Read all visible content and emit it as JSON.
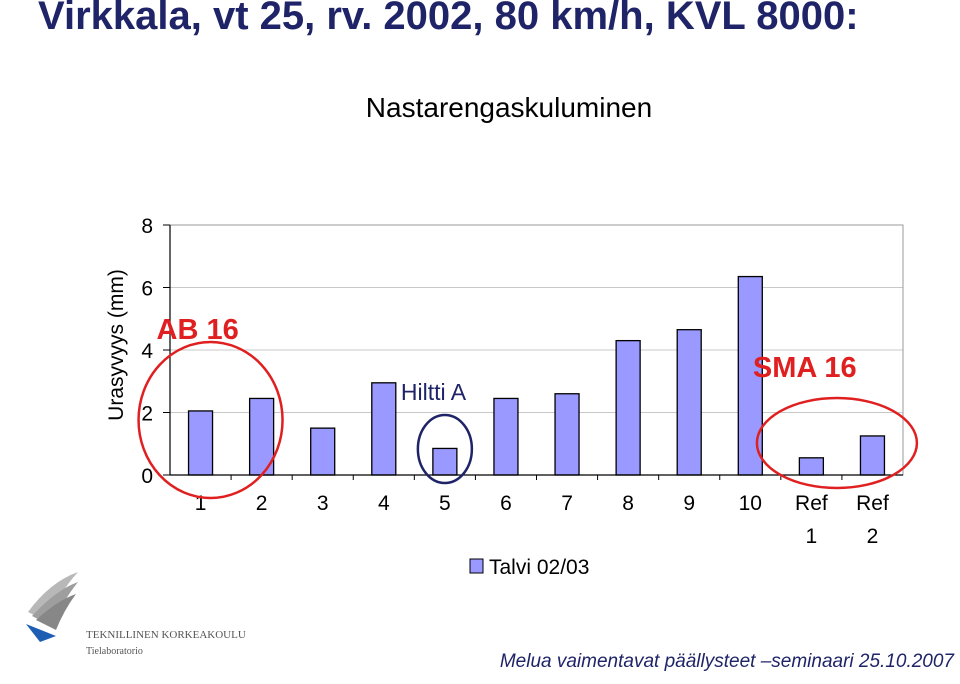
{
  "slide": {
    "title": "Virkkala, vt 25, rv. 2002, 80 km/h, KVL 8000:",
    "footer": "Melua vaimentavat päällysteet –seminaari 25.10.2007",
    "logo_text_1": "TEKNILLINEN KORKEAKOULU",
    "logo_text_2": "Tielaboratorio"
  },
  "chart_data": {
    "type": "bar",
    "title": "Nastarengaskuluminen",
    "ylabel": "Urasyvyys (mm)",
    "xlabel": "",
    "ylim": [
      0,
      8
    ],
    "yticks": [
      "0",
      "2",
      "4",
      "6",
      "8"
    ],
    "grid": true,
    "legend_position": "bottom",
    "categories": [
      [
        "1"
      ],
      [
        "2"
      ],
      [
        "3"
      ],
      [
        "4"
      ],
      [
        "5"
      ],
      [
        "6"
      ],
      [
        "7"
      ],
      [
        "8"
      ],
      [
        "9"
      ],
      [
        "10"
      ],
      [
        "Ref",
        "1"
      ],
      [
        "Ref",
        "2"
      ]
    ],
    "series": [
      {
        "name": "Talvi 02/03",
        "color": "#9999ff",
        "values": [
          2.05,
          2.45,
          1.5,
          2.95,
          0.85,
          2.45,
          2.6,
          4.3,
          4.65,
          6.35,
          0.55,
          1.25
        ]
      }
    ],
    "annotations": [
      {
        "text": "AB 16",
        "color": "#e02020",
        "target_bars": [
          1
        ]
      },
      {
        "text": "Hiltti A",
        "color": "#1f2468",
        "target_bars": [
          5
        ]
      },
      {
        "text": "SMA 16",
        "color": "#e02020",
        "target_bars": [
          11,
          12
        ]
      }
    ]
  }
}
